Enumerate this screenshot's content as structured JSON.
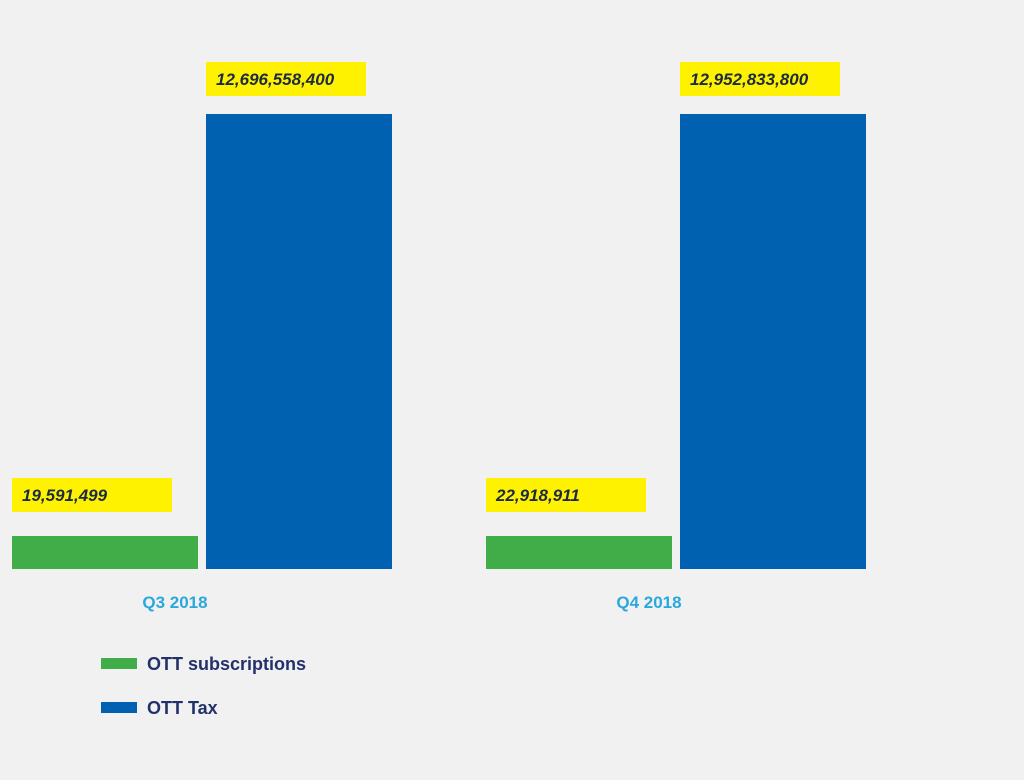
{
  "chart_data": {
    "type": "bar",
    "title": "",
    "xlabel": "",
    "ylabel": "",
    "categories": [
      "Q3 2018",
      "Q4 2018"
    ],
    "series": [
      {
        "name": "OTT subscriptions",
        "color": "#41ad49",
        "values": [
          19591499,
          22918911
        ],
        "labels": [
          "19,591,499",
          "22,918,911"
        ]
      },
      {
        "name": "OTT Tax",
        "color": "#0061b0",
        "values": [
          12696558400,
          12952833800
        ],
        "labels": [
          "12,696,558,400",
          "12,952,833,800"
        ]
      }
    ],
    "label_bg_color": "#fff200",
    "grid": false,
    "legend_position": "bottom-left"
  }
}
